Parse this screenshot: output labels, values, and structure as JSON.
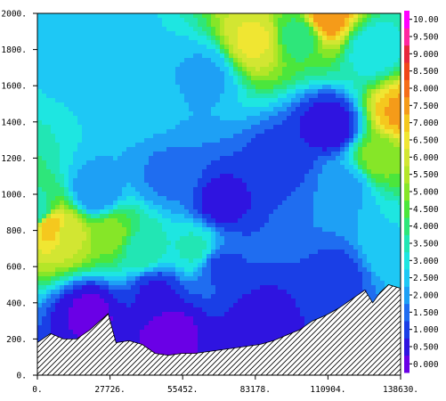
{
  "chart_data": {
    "type": "heatmap",
    "title": "",
    "xlabel": "",
    "ylabel": "",
    "xlim": [
      0,
      138630
    ],
    "ylim": [
      0,
      2000
    ],
    "x_tick_labels": [
      "0.",
      "27726.",
      "55452.",
      "83178.",
      "110904.",
      "138630."
    ],
    "x_tick_values": [
      0,
      27726,
      55452,
      83178,
      110904,
      138630
    ],
    "y_tick_labels": [
      "0.",
      "200.",
      "400.",
      "600.",
      "800.",
      "1000.",
      "1200.",
      "1400.",
      "1600.",
      "1800.",
      "2000."
    ],
    "y_tick_values": [
      0,
      200,
      400,
      600,
      800,
      1000,
      1200,
      1400,
      1600,
      1800,
      2000
    ],
    "colorbar": {
      "labels": [
        "0.000",
        "0.500",
        "1.000",
        "1.500",
        "2.000",
        "2.500",
        "3.000",
        "3.500",
        "4.000",
        "4.500",
        "5.000",
        "5.500",
        "6.000",
        "6.500",
        "7.000",
        "7.500",
        "8.000",
        "8.500",
        "9.000",
        "9.500",
        "10.00"
      ],
      "levels": [
        0.0,
        0.5,
        1.0,
        1.5,
        2.0,
        2.5,
        3.0,
        3.5,
        4.0,
        4.5,
        5.0,
        5.5,
        6.0,
        6.5,
        7.0,
        7.5,
        8.0,
        8.5,
        9.0,
        9.5,
        10.0
      ],
      "colors": [
        "#6a00e6",
        "#2f14e0",
        "#1a3fe6",
        "#1f6df0",
        "#1ea0f5",
        "#1ec8f5",
        "#1ee6e1",
        "#22e6b4",
        "#2ee67a",
        "#4be63c",
        "#86e628",
        "#b4e628",
        "#d2e632",
        "#f0e632",
        "#f5c81e",
        "#f59b19",
        "#f56e19",
        "#f04619",
        "#e6283c",
        "#ff28a0",
        "#ff00ff"
      ]
    },
    "terrain_profile": {
      "x": [
        0,
        5000,
        10000,
        15000,
        20000,
        27000,
        30000,
        35000,
        40000,
        45000,
        50000,
        55000,
        60000,
        65000,
        70000,
        75000,
        80000,
        85000,
        90000,
        95000,
        100000,
        105000,
        110000,
        115000,
        120000,
        125000,
        128000,
        131000,
        134000,
        138630
      ],
      "y": [
        180,
        230,
        200,
        200,
        250,
        340,
        180,
        190,
        170,
        120,
        110,
        120,
        120,
        130,
        140,
        150,
        160,
        170,
        190,
        220,
        250,
        300,
        330,
        370,
        420,
        470,
        400,
        460,
        500,
        480
      ]
    },
    "field_centers": [
      {
        "x": 0,
        "y": 900,
        "value": 3.5
      },
      {
        "x": 5000,
        "y": 820,
        "value": 7.5
      },
      {
        "x": 12000,
        "y": 780,
        "value": 6.2
      },
      {
        "x": 28000,
        "y": 780,
        "value": 5.2
      },
      {
        "x": 22000,
        "y": 1000,
        "value": 2.0
      },
      {
        "x": 40000,
        "y": 1500,
        "value": 2.7
      },
      {
        "x": 40000,
        "y": 700,
        "value": 3.8
      },
      {
        "x": 60000,
        "y": 700,
        "value": 3.6
      },
      {
        "x": 50000,
        "y": 1100,
        "value": 1.9
      },
      {
        "x": 70000,
        "y": 950,
        "value": 0.8
      },
      {
        "x": 95000,
        "y": 1150,
        "value": 1.0
      },
      {
        "x": 112000,
        "y": 1370,
        "value": 0.6
      },
      {
        "x": 108000,
        "y": 1000,
        "value": 2.0
      },
      {
        "x": 118000,
        "y": 1050,
        "value": 2.4
      },
      {
        "x": 83000,
        "y": 1850,
        "value": 6.6
      },
      {
        "x": 100000,
        "y": 1880,
        "value": 4.2
      },
      {
        "x": 110000,
        "y": 1980,
        "value": 8.0
      },
      {
        "x": 138630,
        "y": 1450,
        "value": 7.6
      },
      {
        "x": 130000,
        "y": 1200,
        "value": 5.2
      },
      {
        "x": 128000,
        "y": 1800,
        "value": 3.2
      },
      {
        "x": 20000,
        "y": 1900,
        "value": 2.5
      },
      {
        "x": 70000,
        "y": 600,
        "value": 1.4
      },
      {
        "x": 45000,
        "y": 450,
        "value": 0.9
      },
      {
        "x": 20000,
        "y": 350,
        "value": 0.4
      },
      {
        "x": 50000,
        "y": 250,
        "value": 0.3
      },
      {
        "x": 85000,
        "y": 300,
        "value": 0.7
      },
      {
        "x": 115000,
        "y": 540,
        "value": 1.3
      },
      {
        "x": 135000,
        "y": 700,
        "value": 3.0
      },
      {
        "x": 64000,
        "y": 1650,
        "value": 2.4
      }
    ]
  }
}
